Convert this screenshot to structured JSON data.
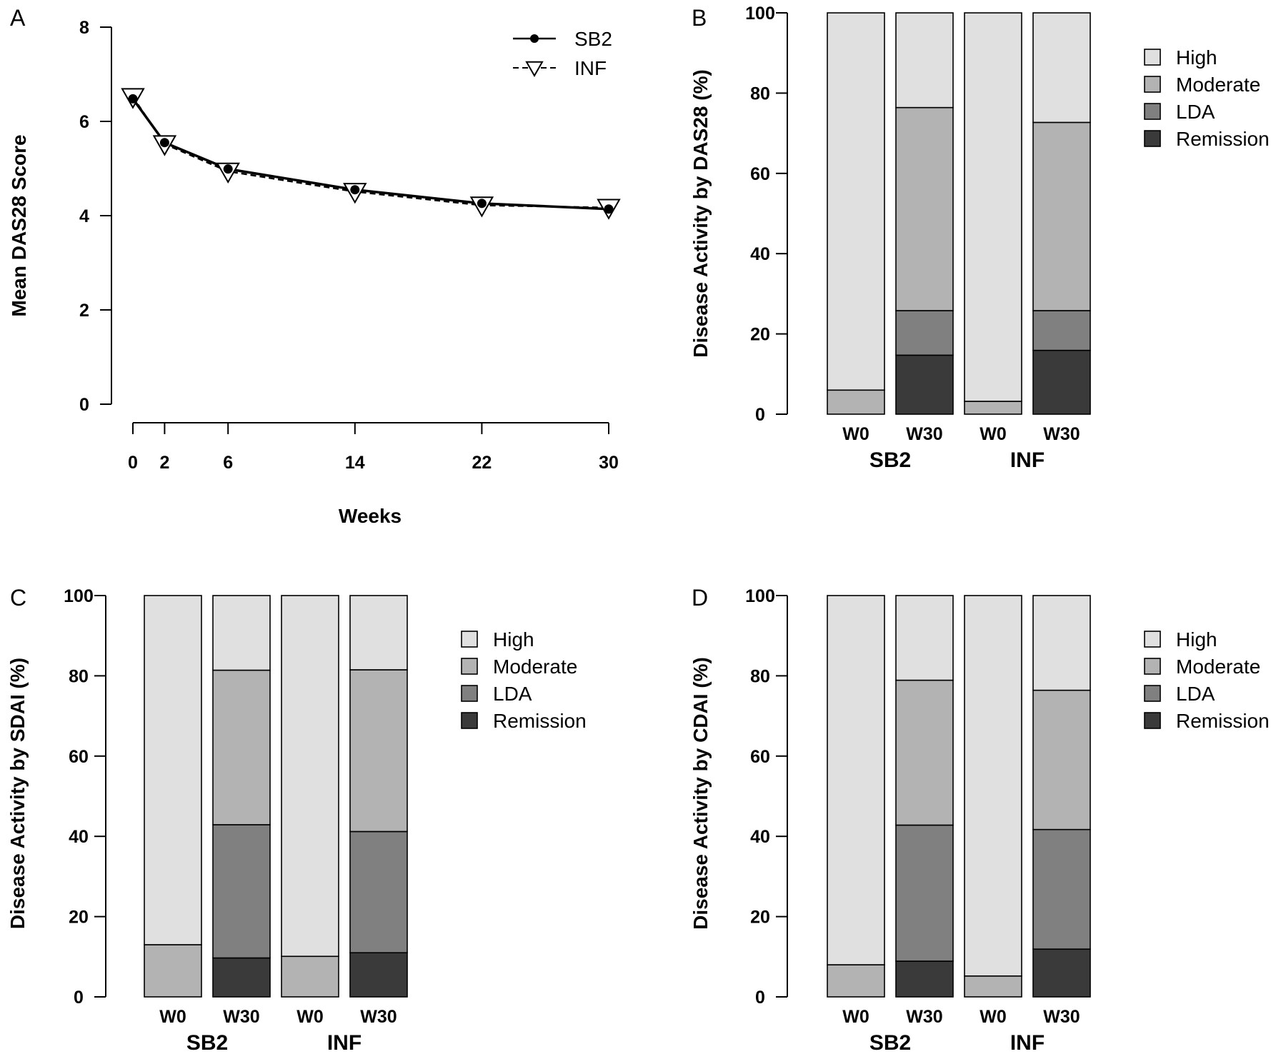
{
  "chart_data": [
    {
      "panel": "A",
      "type": "line",
      "xlabel": "Weeks",
      "ylabel": "Mean DAS28 Score",
      "ylim": [
        0,
        8
      ],
      "yticks": [
        "0",
        "2",
        "4",
        "6",
        "8"
      ],
      "x": [
        0,
        2,
        6,
        14,
        22,
        30
      ],
      "xticks": [
        "0",
        "2",
        "6",
        "14",
        "22",
        "30"
      ],
      "xlim": [
        0,
        30
      ],
      "legend_position": "top-right",
      "series": [
        {
          "name": "SB2",
          "marker": "filled-circle",
          "line": "solid",
          "color": "#000000",
          "values": [
            6.48,
            5.55,
            4.99,
            4.55,
            4.26,
            4.14
          ]
        },
        {
          "name": "INF",
          "marker": "open-triangle-down",
          "line": "dashed",
          "color": "#000000",
          "values": [
            6.52,
            5.52,
            4.94,
            4.51,
            4.22,
            4.17
          ]
        }
      ]
    },
    {
      "panel": "B",
      "type": "bar",
      "stacked": true,
      "ylabel": "Disease Activity by DAS28 (%)",
      "ylim": [
        0,
        100
      ],
      "yticks": [
        "0",
        "20",
        "40",
        "60",
        "80",
        "100"
      ],
      "categories": [
        "W0",
        "W30",
        "W0",
        "W30"
      ],
      "groups": [
        "SB2",
        "INF"
      ],
      "legend_position": "right",
      "series": [
        {
          "name": "Remission",
          "color": "#3a3a3a",
          "values": [
            0,
            14.7,
            0,
            15.9
          ]
        },
        {
          "name": "LDA",
          "color": "#808080",
          "values": [
            0,
            11.1,
            0,
            9.9
          ]
        },
        {
          "name": "Moderate",
          "color": "#b3b3b3",
          "values": [
            6.0,
            50.6,
            3.2,
            46.9
          ]
        },
        {
          "name": "High",
          "color": "#e0e0e0",
          "values": [
            94.0,
            23.6,
            96.8,
            27.3
          ]
        }
      ]
    },
    {
      "panel": "C",
      "type": "bar",
      "stacked": true,
      "ylabel": "Disease Activity by SDAI (%)",
      "ylim": [
        0,
        100
      ],
      "yticks": [
        "0",
        "20",
        "40",
        "60",
        "80",
        "100"
      ],
      "categories": [
        "W0",
        "W30",
        "W0",
        "W30"
      ],
      "groups": [
        "SB2",
        "INF"
      ],
      "legend_position": "right",
      "series": [
        {
          "name": "Remission",
          "color": "#3a3a3a",
          "values": [
            0,
            9.7,
            0,
            11.0
          ]
        },
        {
          "name": "LDA",
          "color": "#808080",
          "values": [
            0,
            33.2,
            0,
            30.2
          ]
        },
        {
          "name": "Moderate",
          "color": "#b3b3b3",
          "values": [
            13.0,
            38.5,
            10.1,
            40.3
          ]
        },
        {
          "name": "High",
          "color": "#e0e0e0",
          "values": [
            87.0,
            18.6,
            89.9,
            18.5
          ]
        }
      ]
    },
    {
      "panel": "D",
      "type": "bar",
      "stacked": true,
      "ylabel": "Disease Activity by CDAI (%)",
      "ylim": [
        0,
        100
      ],
      "yticks": [
        "0",
        "20",
        "40",
        "60",
        "80",
        "100"
      ],
      "categories": [
        "W0",
        "W30",
        "W0",
        "W30"
      ],
      "groups": [
        "SB2",
        "INF"
      ],
      "legend_position": "right",
      "series": [
        {
          "name": "Remission",
          "color": "#3a3a3a",
          "values": [
            0,
            8.9,
            0,
            11.9
          ]
        },
        {
          "name": "LDA",
          "color": "#808080",
          "values": [
            0,
            33.9,
            0,
            29.8
          ]
        },
        {
          "name": "Moderate",
          "color": "#b3b3b3",
          "values": [
            8.0,
            36.1,
            5.2,
            34.7
          ]
        },
        {
          "name": "High",
          "color": "#e0e0e0",
          "values": [
            92.0,
            21.1,
            94.8,
            23.6
          ]
        }
      ]
    }
  ],
  "legend_order": [
    "High",
    "Moderate",
    "LDA",
    "Remission"
  ]
}
